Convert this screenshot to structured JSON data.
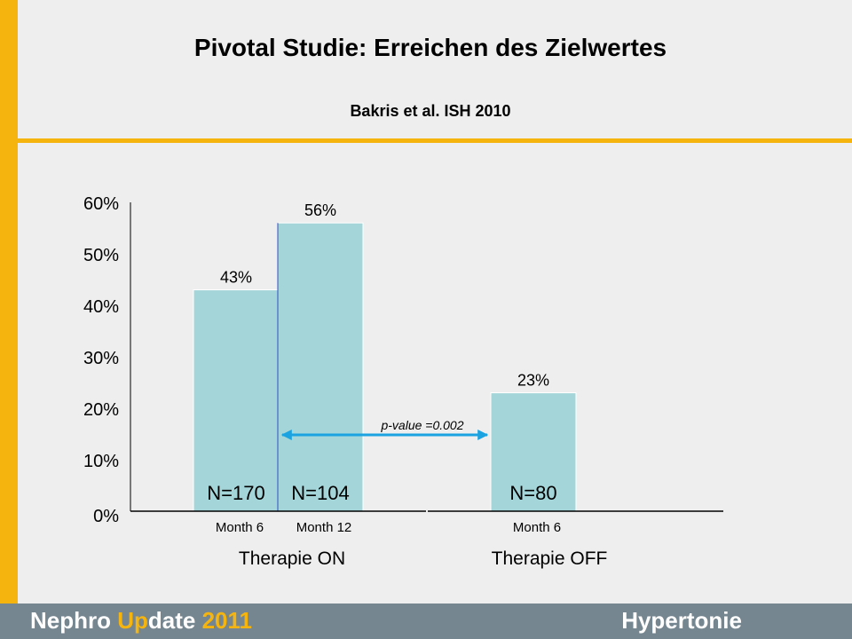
{
  "slide": {
    "title": "Pivotal Studie: Erreichen des Zielwertes",
    "subtitle": "Bakris et al. ISH 2010"
  },
  "footer": {
    "brand_part1": "Nephro ",
    "brand_part2": "Up",
    "brand_part3": "date ",
    "brand_year": "2011",
    "topic": "Hypertonie"
  },
  "colors": {
    "accent": "#f6b40e",
    "bar": "#a3d5d9",
    "arrow": "#1aa3e0",
    "footer": "#758690"
  },
  "chart_data": {
    "type": "bar",
    "title": "",
    "ylabel": "",
    "ylim": [
      0,
      60
    ],
    "y_ticks": [
      "0%",
      "10%",
      "20%",
      "30%",
      "40%",
      "50%",
      "60%"
    ],
    "categories": [
      "Month 6",
      "Month 12",
      "Month 6"
    ],
    "groups": [
      "Therapie ON",
      "Therapie ON",
      "Therapie OFF"
    ],
    "group_labels": [
      "Therapie ON",
      "Therapie OFF"
    ],
    "values": [
      43,
      56,
      23
    ],
    "value_labels": [
      "43%",
      "56%",
      "23%"
    ],
    "n_labels": [
      "N=170",
      "N=104",
      "N=80"
    ],
    "annotation": "p-value =0.002",
    "grid": false
  }
}
